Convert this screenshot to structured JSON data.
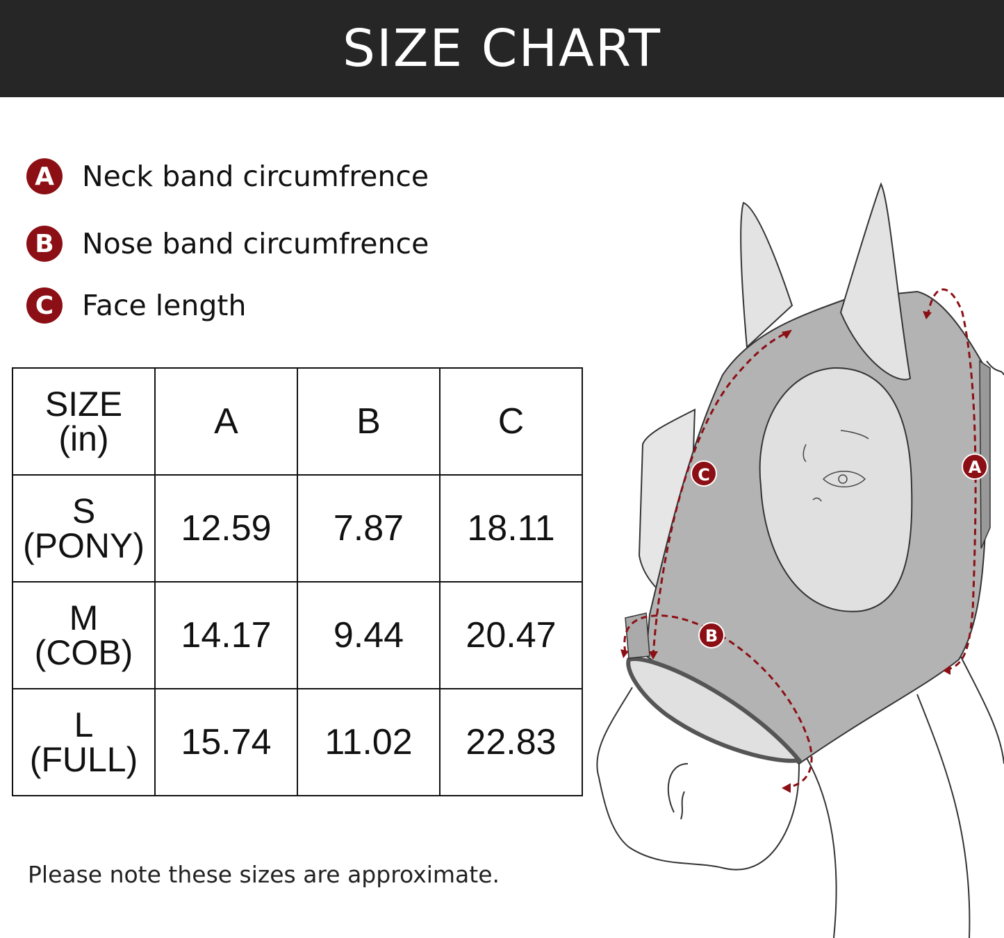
{
  "header": {
    "title": "SIZE CHART"
  },
  "legend": [
    {
      "badge": "A",
      "label": "Neck band circumfrence"
    },
    {
      "badge": "B",
      "label": "Nose band circumfrence"
    },
    {
      "badge": "C",
      "label": "Face length"
    }
  ],
  "table": {
    "headers": {
      "size_line1": "SIZE",
      "size_line2": "(in)",
      "cols": [
        "A",
        "B",
        "C"
      ]
    },
    "rows": [
      {
        "size": "S",
        "sub": "(PONY)",
        "values": [
          "12.59",
          "7.87",
          "18.11"
        ]
      },
      {
        "size": "M",
        "sub": "(COB)",
        "values": [
          "14.17",
          "9.44",
          "20.47"
        ]
      },
      {
        "size": "L",
        "sub": "(FULL)",
        "values": [
          "15.74",
          "11.02",
          "22.83"
        ]
      }
    ]
  },
  "note": "Please note these sizes are approximate.",
  "diagram": {
    "labels": [
      "A",
      "B",
      "C"
    ]
  },
  "colors": {
    "banner": "#262626",
    "accent": "#8b0f14",
    "mask": "#b3b3b3",
    "mask_light": "#e0e0e0"
  }
}
